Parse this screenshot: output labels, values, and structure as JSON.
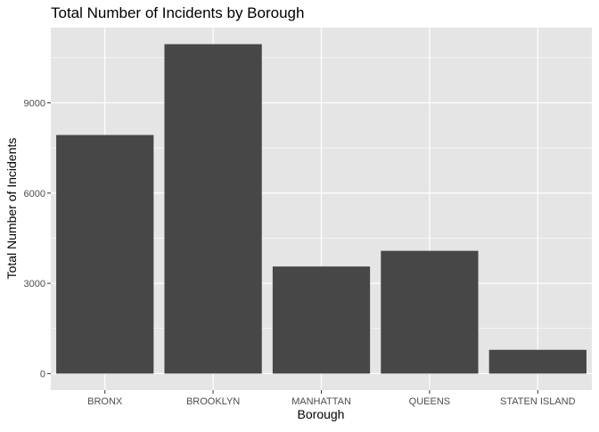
{
  "chart_data": {
    "type": "bar",
    "title": "Total Number of Incidents by Borough",
    "xlabel": "Borough",
    "ylabel": "Total Number of Incidents",
    "categories": [
      "BRONX",
      "BROOKLYN",
      "MANHATTAN",
      "QUEENS",
      "STATEN ISLAND"
    ],
    "values": [
      7930,
      10950,
      3560,
      4080,
      790
    ],
    "ylim": [
      0,
      11500
    ],
    "yticks": [
      0,
      3000,
      6000,
      9000
    ],
    "ytick_labels": [
      "0",
      "3000",
      "6000",
      "9000"
    ],
    "grid": true,
    "legend": "none",
    "colors": {
      "panel_background": "#e5e5e5",
      "grid_major": "#ffffff",
      "bar_fill": "#474747",
      "tick_text": "#4d4d4d",
      "axis_text": "#000000"
    }
  }
}
